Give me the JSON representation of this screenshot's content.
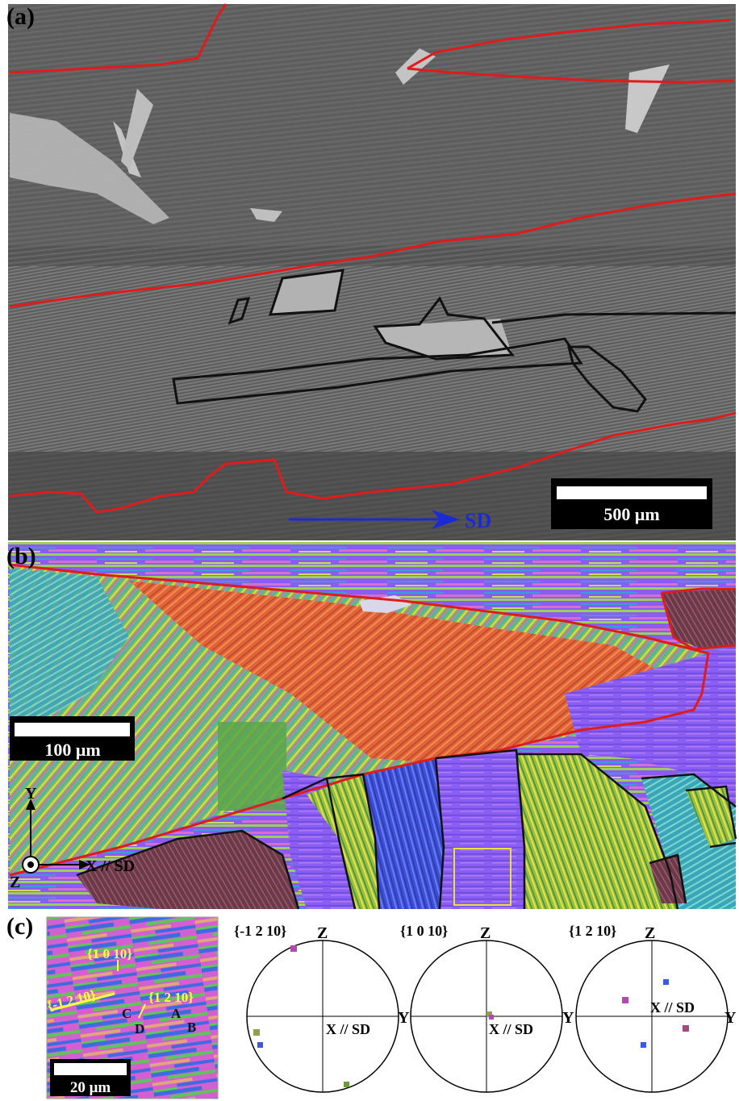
{
  "panels": {
    "a": {
      "label": "(a)",
      "scale_bar": "500 μm",
      "direction_label": "SD",
      "colors": {
        "red_boundary": "#e01b1b",
        "black_boundary": "#111111",
        "arrow": "#1a2bd6"
      }
    },
    "b": {
      "label": "(b)",
      "scale_bar": "100 μm",
      "axes": {
        "y": "Y",
        "x": "X // SD",
        "z": "Z"
      }
    },
    "c": {
      "label": "(c)",
      "scale_bar": "20 μm",
      "annotations": {
        "plane_1": "{1 0 10}",
        "plane_2": "{-1 2 10}",
        "plane_3": "{1 2 10}",
        "variant_a": "A",
        "variant_b": "B",
        "variant_c": "C",
        "variant_d": "D"
      },
      "pole_figures": [
        {
          "title": "{-1 2 10}",
          "top_axis": "Z",
          "right_axis": "Y",
          "center_axis": "X // SD"
        },
        {
          "title": "{1 0 10}",
          "top_axis": "Z",
          "right_axis": "Y",
          "center_axis": "X // SD"
        },
        {
          "title": "{1 2 10}",
          "top_axis": "Z",
          "right_axis": "Y",
          "center_axis": "X // SD"
        }
      ]
    }
  }
}
